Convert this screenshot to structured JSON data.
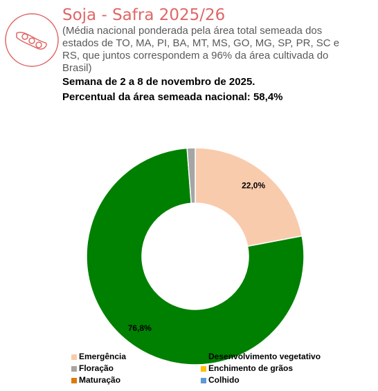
{
  "chart_data": {
    "type": "donut",
    "title": "Soja - Safra 2025/26",
    "subtitle": "(Média nacional ponderada pela área total semeada dos estados de TO, MA, PI, BA, MT, MS, GO, MG, SP, PR, SC e RS, que juntos correspondem a 96% da área cultivada do Brasil)",
    "week": "Semana de 2 a 8 de novembro de 2025.",
    "planted_share": "Percentual da área semeada nacional: 58,4%",
    "categories": [
      "Emergência",
      "Desenvolvimento vegetativo",
      "Floração",
      "Enchimento de grãos",
      "Maturação",
      "Colhido"
    ],
    "values": [
      22.0,
      76.8,
      1.2,
      0,
      0,
      0
    ],
    "value_labels": [
      "22,0%",
      "76,8%",
      null,
      null,
      null,
      null
    ],
    "colors": [
      "#f8cbad",
      "#008000",
      "#a5a5a5",
      "#ffc000",
      "#d97c0c",
      "#5b9bd5"
    ]
  }
}
